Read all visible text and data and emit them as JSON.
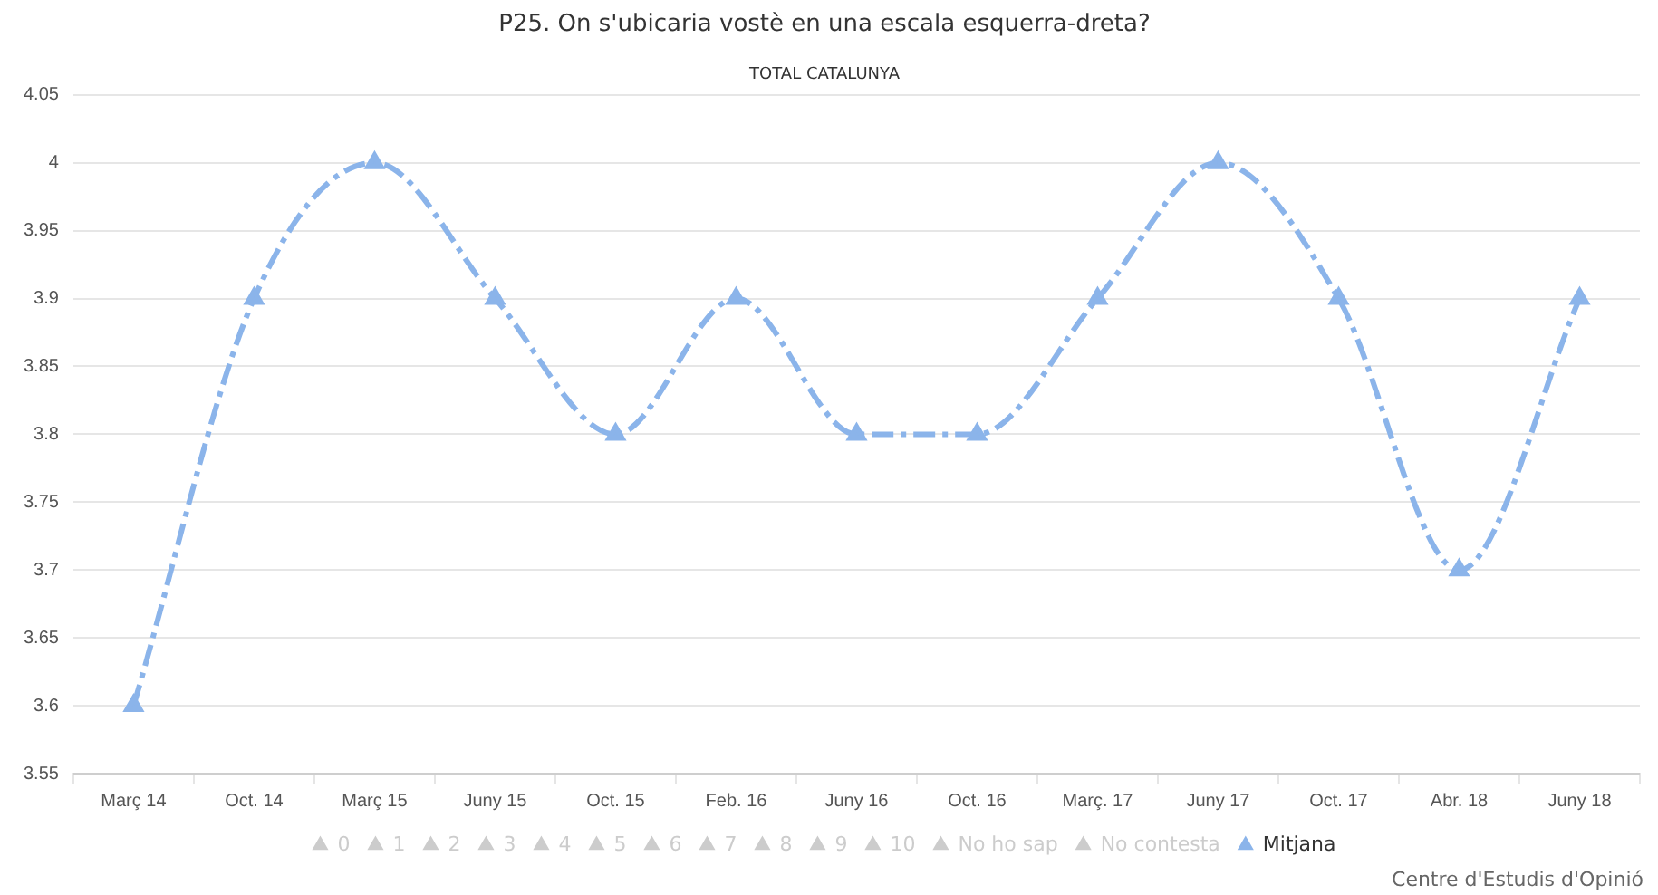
{
  "chart_data": {
    "type": "line",
    "title": "P25. On s'ubicaria vostè en una escala esquerra-dreta?",
    "subtitle": "TOTAL CATALUNYA",
    "categories": [
      "Març 14",
      "Oct. 14",
      "Març 15",
      "Juny 15",
      "Oct. 15",
      "Feb. 16",
      "Juny 16",
      "Oct. 16",
      "Març. 17",
      "Juny 17",
      "Oct. 17",
      "Abr. 18",
      "Juny 18"
    ],
    "series": [
      {
        "name": "0",
        "color": "#cccccc",
        "values": [
          null,
          null,
          null,
          null,
          null,
          null,
          null,
          null,
          null,
          null,
          null,
          null,
          null
        ]
      },
      {
        "name": "1",
        "color": "#cccccc",
        "values": [
          null,
          null,
          null,
          null,
          null,
          null,
          null,
          null,
          null,
          null,
          null,
          null,
          null
        ]
      },
      {
        "name": "2",
        "color": "#cccccc",
        "values": [
          null,
          null,
          null,
          null,
          null,
          null,
          null,
          null,
          null,
          null,
          null,
          null,
          null
        ]
      },
      {
        "name": "3",
        "color": "#cccccc",
        "values": [
          null,
          null,
          null,
          null,
          null,
          null,
          null,
          null,
          null,
          null,
          null,
          null,
          null
        ]
      },
      {
        "name": "4",
        "color": "#cccccc",
        "values": [
          null,
          null,
          null,
          null,
          null,
          null,
          null,
          null,
          null,
          null,
          null,
          null,
          null
        ]
      },
      {
        "name": "5",
        "color": "#cccccc",
        "values": [
          null,
          null,
          null,
          null,
          null,
          null,
          null,
          null,
          null,
          null,
          null,
          null,
          null
        ]
      },
      {
        "name": "6",
        "color": "#cccccc",
        "values": [
          null,
          null,
          null,
          null,
          null,
          null,
          null,
          null,
          null,
          null,
          null,
          null,
          null
        ]
      },
      {
        "name": "7",
        "color": "#cccccc",
        "values": [
          null,
          null,
          null,
          null,
          null,
          null,
          null,
          null,
          null,
          null,
          null,
          null,
          null
        ]
      },
      {
        "name": "8",
        "color": "#cccccc",
        "values": [
          null,
          null,
          null,
          null,
          null,
          null,
          null,
          null,
          null,
          null,
          null,
          null,
          null
        ]
      },
      {
        "name": "9",
        "color": "#cccccc",
        "values": [
          null,
          null,
          null,
          null,
          null,
          null,
          null,
          null,
          null,
          null,
          null,
          null,
          null
        ]
      },
      {
        "name": "10",
        "color": "#cccccc",
        "values": [
          null,
          null,
          null,
          null,
          null,
          null,
          null,
          null,
          null,
          null,
          null,
          null,
          null
        ]
      },
      {
        "name": "No ho sap",
        "color": "#cccccc",
        "values": [
          null,
          null,
          null,
          null,
          null,
          null,
          null,
          null,
          null,
          null,
          null,
          null,
          null
        ]
      },
      {
        "name": "No contesta",
        "color": "#cccccc",
        "values": [
          null,
          null,
          null,
          null,
          null,
          null,
          null,
          null,
          null,
          null,
          null,
          null,
          null
        ]
      },
      {
        "name": "Mitjana",
        "color": "#8bb4ea",
        "values": [
          3.6,
          3.9,
          4.0,
          3.9,
          3.8,
          3.9,
          3.8,
          3.8,
          3.9,
          4.0,
          3.9,
          3.7,
          3.9
        ]
      }
    ],
    "ylim": [
      3.55,
      4.05
    ],
    "yticks": [
      3.55,
      3.6,
      3.65,
      3.7,
      3.75,
      3.8,
      3.85,
      3.9,
      3.95,
      4,
      4.05
    ],
    "grid": "y",
    "legend": "bottom",
    "marker": "triangle",
    "line_style": "dashed",
    "annotations": [
      "Centre d'Estudis d'Opinió"
    ]
  }
}
